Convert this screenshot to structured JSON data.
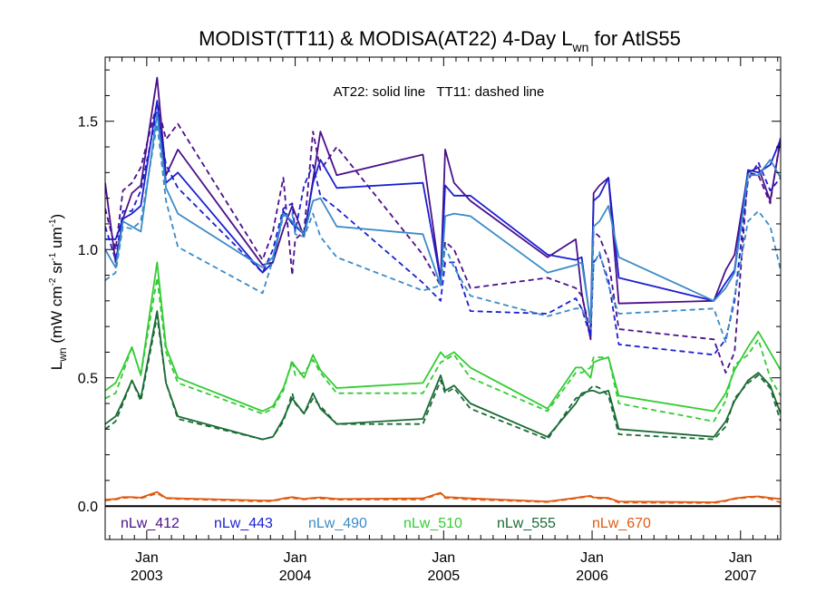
{
  "chart_data": {
    "type": "line",
    "title_main": "MODIST(TT11) & MODISA(AT22) 4-Day L",
    "title_sub": "wn",
    "title_tail": " for AtlS55",
    "annotation": "AT22: solid line   TT11: dashed line",
    "ylabel_main": "L",
    "ylabel_sub": "wn",
    "ylabel_units": " (mW cm",
    "ylabel_sup1": "-2",
    "ylabel_sr": " sr",
    "ylabel_sup2": "-1",
    "ylabel_um": " um",
    "ylabel_sup3": "-1",
    "ylabel_close": ")",
    "ylim": [
      -0.13,
      1.75
    ],
    "xlim": [
      2002.72,
      2007.27
    ],
    "yticks": [
      {
        "v": 0.0,
        "label": "0.0"
      },
      {
        "v": 0.5,
        "label": "0.5"
      },
      {
        "v": 1.0,
        "label": "1.0"
      },
      {
        "v": 1.5,
        "label": "1.5"
      }
    ],
    "xticks": [
      {
        "v": 2003.0,
        "month": "Jan",
        "year": "2003"
      },
      {
        "v": 2004.0,
        "month": "Jan",
        "year": "2004"
      },
      {
        "v": 2005.0,
        "month": "Jan",
        "year": "2005"
      },
      {
        "v": 2006.0,
        "month": "Jan",
        "year": "2006"
      },
      {
        "v": 2007.0,
        "month": "Jan",
        "year": "2007"
      }
    ],
    "zero_line": 0.0,
    "series": [
      {
        "name": "nLw_412",
        "color": "#4b0f8a",
        "style": "solid",
        "x": [
          2002.72,
          2002.79,
          2002.84,
          2002.9,
          2002.96,
          2003.07,
          2003.13,
          2003.21,
          2003.78,
          2003.85,
          2003.92,
          2003.98,
          2004.06,
          2004.12,
          2004.17,
          2004.28,
          2004.86,
          2004.98,
          2005.01,
          2005.07,
          2005.18,
          2005.7,
          2005.89,
          2005.93,
          2005.99,
          2006.01,
          2006.05,
          2006.11,
          2006.18,
          2006.82,
          2006.9,
          2006.96,
          2007.05,
          2007.12,
          2007.2,
          2007.27
        ],
        "y": [
          1.26,
          0.95,
          1.12,
          1.22,
          1.25,
          1.67,
          1.29,
          1.39,
          0.94,
          0.95,
          1.08,
          1.17,
          1.05,
          1.27,
          1.46,
          1.29,
          1.37,
          0.88,
          1.39,
          1.26,
          1.19,
          0.97,
          1.04,
          0.83,
          0.65,
          1.22,
          1.25,
          1.28,
          0.79,
          0.8,
          0.92,
          0.98,
          1.3,
          1.32,
          1.19,
          1.43
        ]
      },
      {
        "name": "nLw_412",
        "color": "#4b0f8a",
        "style": "dashed",
        "x": [
          2002.72,
          2002.79,
          2002.84,
          2002.9,
          2002.96,
          2003.07,
          2003.13,
          2003.21,
          2003.78,
          2003.85,
          2003.92,
          2003.98,
          2004.0,
          2004.06,
          2004.12,
          2004.17,
          2004.28,
          2004.86,
          2004.98,
          2005.01,
          2005.07,
          2005.18,
          2005.7,
          2005.89,
          2005.93,
          2005.99,
          2006.01,
          2006.05,
          2006.11,
          2006.18,
          2006.82,
          2006.9,
          2006.96,
          2007.05,
          2007.12,
          2007.2,
          2007.27
        ],
        "y": [
          1.16,
          1.0,
          1.23,
          1.26,
          1.32,
          1.57,
          1.43,
          1.49,
          0.96,
          1.07,
          1.28,
          0.9,
          1.04,
          1.07,
          1.46,
          1.31,
          1.4,
          0.98,
          0.86,
          1.03,
          1.0,
          0.85,
          0.89,
          0.85,
          0.82,
          0.68,
          1.07,
          1.05,
          0.96,
          0.69,
          0.65,
          0.52,
          0.6,
          1.3,
          1.29,
          1.18,
          1.44
        ]
      },
      {
        "name": "nLw_443",
        "color": "#1a1fd1",
        "style": "solid",
        "x": [
          2002.72,
          2002.79,
          2002.84,
          2002.9,
          2002.96,
          2003.07,
          2003.13,
          2003.21,
          2003.78,
          2003.85,
          2003.92,
          2003.98,
          2004.06,
          2004.12,
          2004.17,
          2004.28,
          2004.86,
          2004.98,
          2005.01,
          2005.07,
          2005.18,
          2005.7,
          2005.89,
          2005.93,
          2005.99,
          2006.01,
          2006.05,
          2006.11,
          2006.18,
          2006.82,
          2006.9,
          2006.96,
          2007.05,
          2007.12,
          2007.2,
          2007.27
        ],
        "y": [
          1.04,
          1.04,
          1.12,
          1.14,
          1.17,
          1.58,
          1.26,
          1.3,
          0.91,
          0.95,
          1.15,
          1.1,
          1.06,
          1.26,
          1.35,
          1.24,
          1.26,
          0.88,
          1.25,
          1.21,
          1.21,
          0.98,
          0.96,
          0.97,
          0.71,
          1.19,
          1.21,
          1.28,
          0.89,
          0.8,
          0.87,
          0.92,
          1.31,
          1.3,
          1.33,
          1.43
        ]
      },
      {
        "name": "nLw_443",
        "color": "#1a1fd1",
        "style": "dashed",
        "x": [
          2002.72,
          2002.79,
          2002.84,
          2002.9,
          2002.96,
          2003.07,
          2003.13,
          2003.21,
          2003.78,
          2003.85,
          2003.92,
          2003.98,
          2004.0,
          2004.06,
          2004.12,
          2004.17,
          2004.28,
          2004.86,
          2004.98,
          2005.01,
          2005.07,
          2005.18,
          2005.7,
          2005.89,
          2005.93,
          2005.99,
          2006.01,
          2006.05,
          2006.11,
          2006.18,
          2006.82,
          2006.9,
          2006.96,
          2007.05,
          2007.12,
          2007.2,
          2007.27
        ],
        "y": [
          1.09,
          0.96,
          1.15,
          1.15,
          1.23,
          1.54,
          1.33,
          1.24,
          0.91,
          1.0,
          1.16,
          1.18,
          1.07,
          1.25,
          1.33,
          1.21,
          1.16,
          0.87,
          0.8,
          0.95,
          0.95,
          0.76,
          0.75,
          0.81,
          0.77,
          0.66,
          0.95,
          0.98,
          0.88,
          0.63,
          0.59,
          0.65,
          0.8,
          1.27,
          1.34,
          1.23,
          1.28
        ]
      },
      {
        "name": "nLw_490",
        "color": "#3b8bc7",
        "style": "solid",
        "x": [
          2002.72,
          2002.79,
          2002.84,
          2002.9,
          2002.96,
          2003.07,
          2003.13,
          2003.21,
          2003.78,
          2003.85,
          2003.92,
          2003.98,
          2004.06,
          2004.12,
          2004.17,
          2004.28,
          2004.86,
          2004.98,
          2005.01,
          2005.07,
          2005.18,
          2005.7,
          2005.89,
          2005.93,
          2005.99,
          2006.01,
          2006.05,
          2006.11,
          2006.18,
          2006.82,
          2006.9,
          2006.96,
          2007.05,
          2007.12,
          2007.2,
          2007.27
        ],
        "y": [
          1.0,
          0.93,
          1.11,
          1.09,
          1.07,
          1.53,
          1.24,
          1.14,
          0.93,
          0.97,
          1.14,
          1.11,
          1.06,
          1.19,
          1.2,
          1.09,
          1.06,
          0.86,
          1.13,
          1.14,
          1.13,
          0.91,
          0.94,
          0.95,
          0.72,
          1.09,
          1.11,
          1.17,
          0.97,
          0.8,
          0.85,
          0.91,
          1.29,
          1.29,
          1.35,
          1.28
        ]
      },
      {
        "name": "nLw_490",
        "color": "#3b8bc7",
        "style": "dashed",
        "x": [
          2002.72,
          2002.79,
          2002.84,
          2002.9,
          2002.96,
          2003.07,
          2003.13,
          2003.21,
          2003.78,
          2003.85,
          2003.92,
          2003.98,
          2004.0,
          2004.06,
          2004.12,
          2004.17,
          2004.28,
          2004.86,
          2004.98,
          2005.01,
          2005.07,
          2005.18,
          2005.7,
          2005.89,
          2005.93,
          2005.99,
          2006.01,
          2006.05,
          2006.11,
          2006.18,
          2006.82,
          2006.9,
          2006.96,
          2007.05,
          2007.12,
          2007.2,
          2007.27
        ],
        "y": [
          0.88,
          0.91,
          1.09,
          1.08,
          1.11,
          1.49,
          1.19,
          1.01,
          0.83,
          0.96,
          1.13,
          1.14,
          1.06,
          1.05,
          1.14,
          1.05,
          0.97,
          0.84,
          0.86,
          1.01,
          0.93,
          0.82,
          0.74,
          0.77,
          0.77,
          0.69,
          0.94,
          0.99,
          0.86,
          0.75,
          0.77,
          0.64,
          0.82,
          1.11,
          1.15,
          1.09,
          0.92
        ]
      },
      {
        "name": "nLw_510",
        "color": "#33cc33",
        "style": "solid",
        "x": [
          2002.72,
          2002.79,
          2002.84,
          2002.9,
          2002.96,
          2003.07,
          2003.13,
          2003.21,
          2003.78,
          2003.85,
          2003.92,
          2003.98,
          2004.06,
          2004.12,
          2004.17,
          2004.28,
          2004.86,
          2004.98,
          2005.01,
          2005.07,
          2005.18,
          2005.7,
          2005.89,
          2005.93,
          2005.99,
          2006.01,
          2006.05,
          2006.11,
          2006.18,
          2006.82,
          2006.9,
          2006.96,
          2007.05,
          2007.12,
          2007.2,
          2007.27
        ],
        "y": [
          0.45,
          0.48,
          0.54,
          0.62,
          0.51,
          0.95,
          0.62,
          0.5,
          0.37,
          0.39,
          0.46,
          0.56,
          0.5,
          0.59,
          0.53,
          0.46,
          0.48,
          0.6,
          0.58,
          0.6,
          0.54,
          0.38,
          0.54,
          0.54,
          0.5,
          0.56,
          0.57,
          0.58,
          0.43,
          0.37,
          0.44,
          0.53,
          0.62,
          0.68,
          0.6,
          0.53
        ]
      },
      {
        "name": "nLw_510",
        "color": "#33cc33",
        "style": "dashed",
        "x": [
          2002.72,
          2002.79,
          2002.84,
          2002.9,
          2002.96,
          2003.07,
          2003.13,
          2003.21,
          2003.78,
          2003.85,
          2003.92,
          2003.98,
          2004.0,
          2004.06,
          2004.12,
          2004.17,
          2004.28,
          2004.86,
          2004.98,
          2005.01,
          2005.07,
          2005.18,
          2005.7,
          2005.89,
          2005.93,
          2005.99,
          2006.01,
          2006.05,
          2006.11,
          2006.18,
          2006.82,
          2006.9,
          2006.96,
          2007.05,
          2007.12,
          2007.2,
          2007.27
        ],
        "y": [
          0.42,
          0.44,
          0.52,
          0.62,
          0.51,
          0.89,
          0.6,
          0.48,
          0.36,
          0.38,
          0.45,
          0.57,
          0.51,
          0.52,
          0.57,
          0.52,
          0.44,
          0.44,
          0.56,
          0.57,
          0.59,
          0.5,
          0.37,
          0.52,
          0.52,
          0.54,
          0.58,
          0.58,
          0.58,
          0.4,
          0.33,
          0.41,
          0.55,
          0.59,
          0.65,
          0.5,
          0.43
        ]
      },
      {
        "name": "nLw_555",
        "color": "#1a6b35",
        "style": "solid",
        "x": [
          2002.72,
          2002.79,
          2002.84,
          2002.9,
          2002.96,
          2003.07,
          2003.13,
          2003.21,
          2003.78,
          2003.85,
          2003.92,
          2003.98,
          2004.06,
          2004.12,
          2004.17,
          2004.28,
          2004.86,
          2004.98,
          2005.01,
          2005.07,
          2005.18,
          2005.7,
          2005.89,
          2005.93,
          2005.99,
          2006.01,
          2006.05,
          2006.11,
          2006.18,
          2006.82,
          2006.9,
          2006.96,
          2007.05,
          2007.12,
          2007.2,
          2007.27
        ],
        "y": [
          0.32,
          0.35,
          0.41,
          0.49,
          0.42,
          0.76,
          0.48,
          0.35,
          0.26,
          0.27,
          0.34,
          0.42,
          0.36,
          0.44,
          0.38,
          0.32,
          0.34,
          0.51,
          0.45,
          0.47,
          0.4,
          0.27,
          0.4,
          0.44,
          0.45,
          0.45,
          0.44,
          0.45,
          0.3,
          0.27,
          0.33,
          0.41,
          0.49,
          0.52,
          0.47,
          0.36
        ]
      },
      {
        "name": "nLw_555",
        "color": "#1a6b35",
        "style": "dashed",
        "x": [
          2002.72,
          2002.79,
          2002.84,
          2002.9,
          2002.96,
          2003.07,
          2003.13,
          2003.21,
          2003.78,
          2003.85,
          2003.92,
          2003.98,
          2004.0,
          2004.06,
          2004.12,
          2004.17,
          2004.28,
          2004.86,
          2004.98,
          2005.01,
          2005.07,
          2005.18,
          2005.7,
          2005.89,
          2005.93,
          2005.99,
          2006.01,
          2006.05,
          2006.11,
          2006.18,
          2006.82,
          2006.9,
          2006.96,
          2007.05,
          2007.12,
          2007.2,
          2007.27
        ],
        "y": [
          0.3,
          0.33,
          0.4,
          0.49,
          0.41,
          0.74,
          0.48,
          0.34,
          0.26,
          0.27,
          0.33,
          0.44,
          0.4,
          0.36,
          0.42,
          0.39,
          0.32,
          0.32,
          0.49,
          0.44,
          0.46,
          0.38,
          0.26,
          0.42,
          0.43,
          0.46,
          0.47,
          0.46,
          0.43,
          0.28,
          0.26,
          0.31,
          0.42,
          0.48,
          0.51,
          0.46,
          0.33
        ]
      },
      {
        "name": "nLw_670",
        "color": "#e05a10",
        "style": "solid",
        "x": [
          2002.72,
          2002.79,
          2002.84,
          2002.9,
          2002.96,
          2003.07,
          2003.13,
          2003.21,
          2003.78,
          2003.85,
          2003.92,
          2003.98,
          2004.06,
          2004.12,
          2004.17,
          2004.28,
          2004.86,
          2004.98,
          2005.01,
          2005.07,
          2005.18,
          2005.7,
          2005.89,
          2005.93,
          2005.99,
          2006.01,
          2006.05,
          2006.11,
          2006.18,
          2006.82,
          2006.9,
          2006.96,
          2007.05,
          2007.12,
          2007.2,
          2007.27
        ],
        "y": [
          0.025,
          0.028,
          0.035,
          0.035,
          0.033,
          0.055,
          0.032,
          0.03,
          0.022,
          0.022,
          0.03,
          0.035,
          0.028,
          0.032,
          0.034,
          0.028,
          0.03,
          0.052,
          0.035,
          0.034,
          0.03,
          0.018,
          0.032,
          0.036,
          0.04,
          0.034,
          0.033,
          0.032,
          0.018,
          0.015,
          0.022,
          0.03,
          0.036,
          0.038,
          0.032,
          0.028
        ]
      },
      {
        "name": "nLw_670",
        "color": "#e05a10",
        "style": "dashed",
        "x": [
          2002.72,
          2002.79,
          2002.84,
          2002.9,
          2002.96,
          2003.07,
          2003.13,
          2003.21,
          2003.78,
          2003.85,
          2003.92,
          2003.98,
          2004.0,
          2004.06,
          2004.12,
          2004.17,
          2004.28,
          2004.86,
          2004.98,
          2005.01,
          2005.07,
          2005.18,
          2005.7,
          2005.89,
          2005.93,
          2005.99,
          2006.01,
          2006.05,
          2006.11,
          2006.18,
          2006.82,
          2006.9,
          2006.96,
          2007.05,
          2007.12,
          2007.2,
          2007.27
        ],
        "y": [
          0.022,
          0.026,
          0.032,
          0.034,
          0.03,
          0.05,
          0.03,
          0.028,
          0.018,
          0.02,
          0.028,
          0.032,
          0.03,
          0.026,
          0.03,
          0.03,
          0.025,
          0.026,
          0.05,
          0.032,
          0.03,
          0.026,
          0.016,
          0.03,
          0.034,
          0.038,
          0.032,
          0.03,
          0.03,
          0.014,
          0.012,
          0.02,
          0.028,
          0.034,
          0.036,
          0.028,
          0.014
        ]
      }
    ],
    "legend": [
      {
        "label": "nLw_412",
        "color": "#4b0f8a"
      },
      {
        "label": "nLw_443",
        "color": "#1a1fd1"
      },
      {
        "label": "nLw_490",
        "color": "#3b8bc7"
      },
      {
        "label": "nLw_510",
        "color": "#33cc33"
      },
      {
        "label": "nLw_555",
        "color": "#1a6b35"
      },
      {
        "label": "nLw_670",
        "color": "#e05a10"
      }
    ]
  }
}
